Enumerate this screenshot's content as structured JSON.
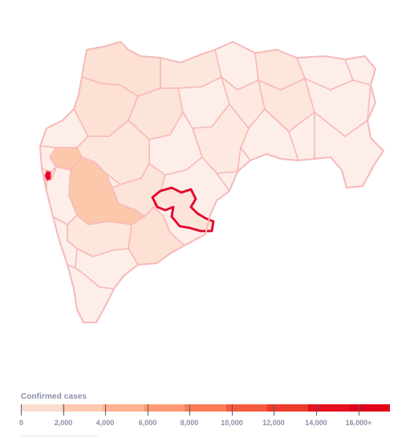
{
  "map": {
    "colors": {
      "border": "#f7b9b9",
      "selected_border": "#e3002b",
      "low": "#fdeee9",
      "light": "#fde1d4",
      "medium": "#fcc8ab",
      "hotspot": "#e8002a"
    }
  },
  "legend": {
    "title": "Confirmed cases",
    "labels": [
      "0",
      "2,000",
      "4,000",
      "6,000",
      "8,000",
      "10,000",
      "12,000",
      "14,000",
      "16,000+"
    ],
    "colors": [
      "#fdddce",
      "#fdc8ad",
      "#fdb38f",
      "#fc9a73",
      "#fb7c57",
      "#f55a3e",
      "#ee3a2b",
      "#e8101e",
      "#e1001a"
    ]
  }
}
